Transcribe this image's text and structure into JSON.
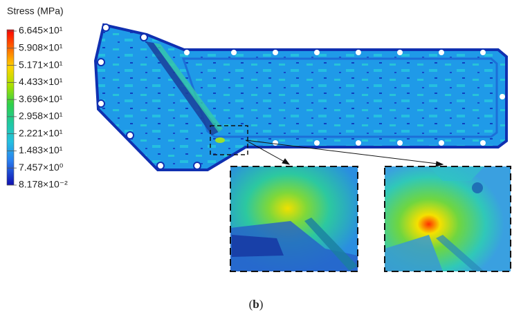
{
  "legend": {
    "title": "Stress (MPa)",
    "labels": [
      "6.645×10¹",
      "5.908×10¹",
      "5.171×10¹",
      "4.433×10¹",
      "3.696×10¹",
      "2.958×10¹",
      "2.221×10¹",
      "1.483×10¹",
      "7.457×10⁰",
      "8.178×10⁻²"
    ]
  },
  "caption": {
    "open": "(",
    "letter": "b",
    "close": ")"
  }
}
